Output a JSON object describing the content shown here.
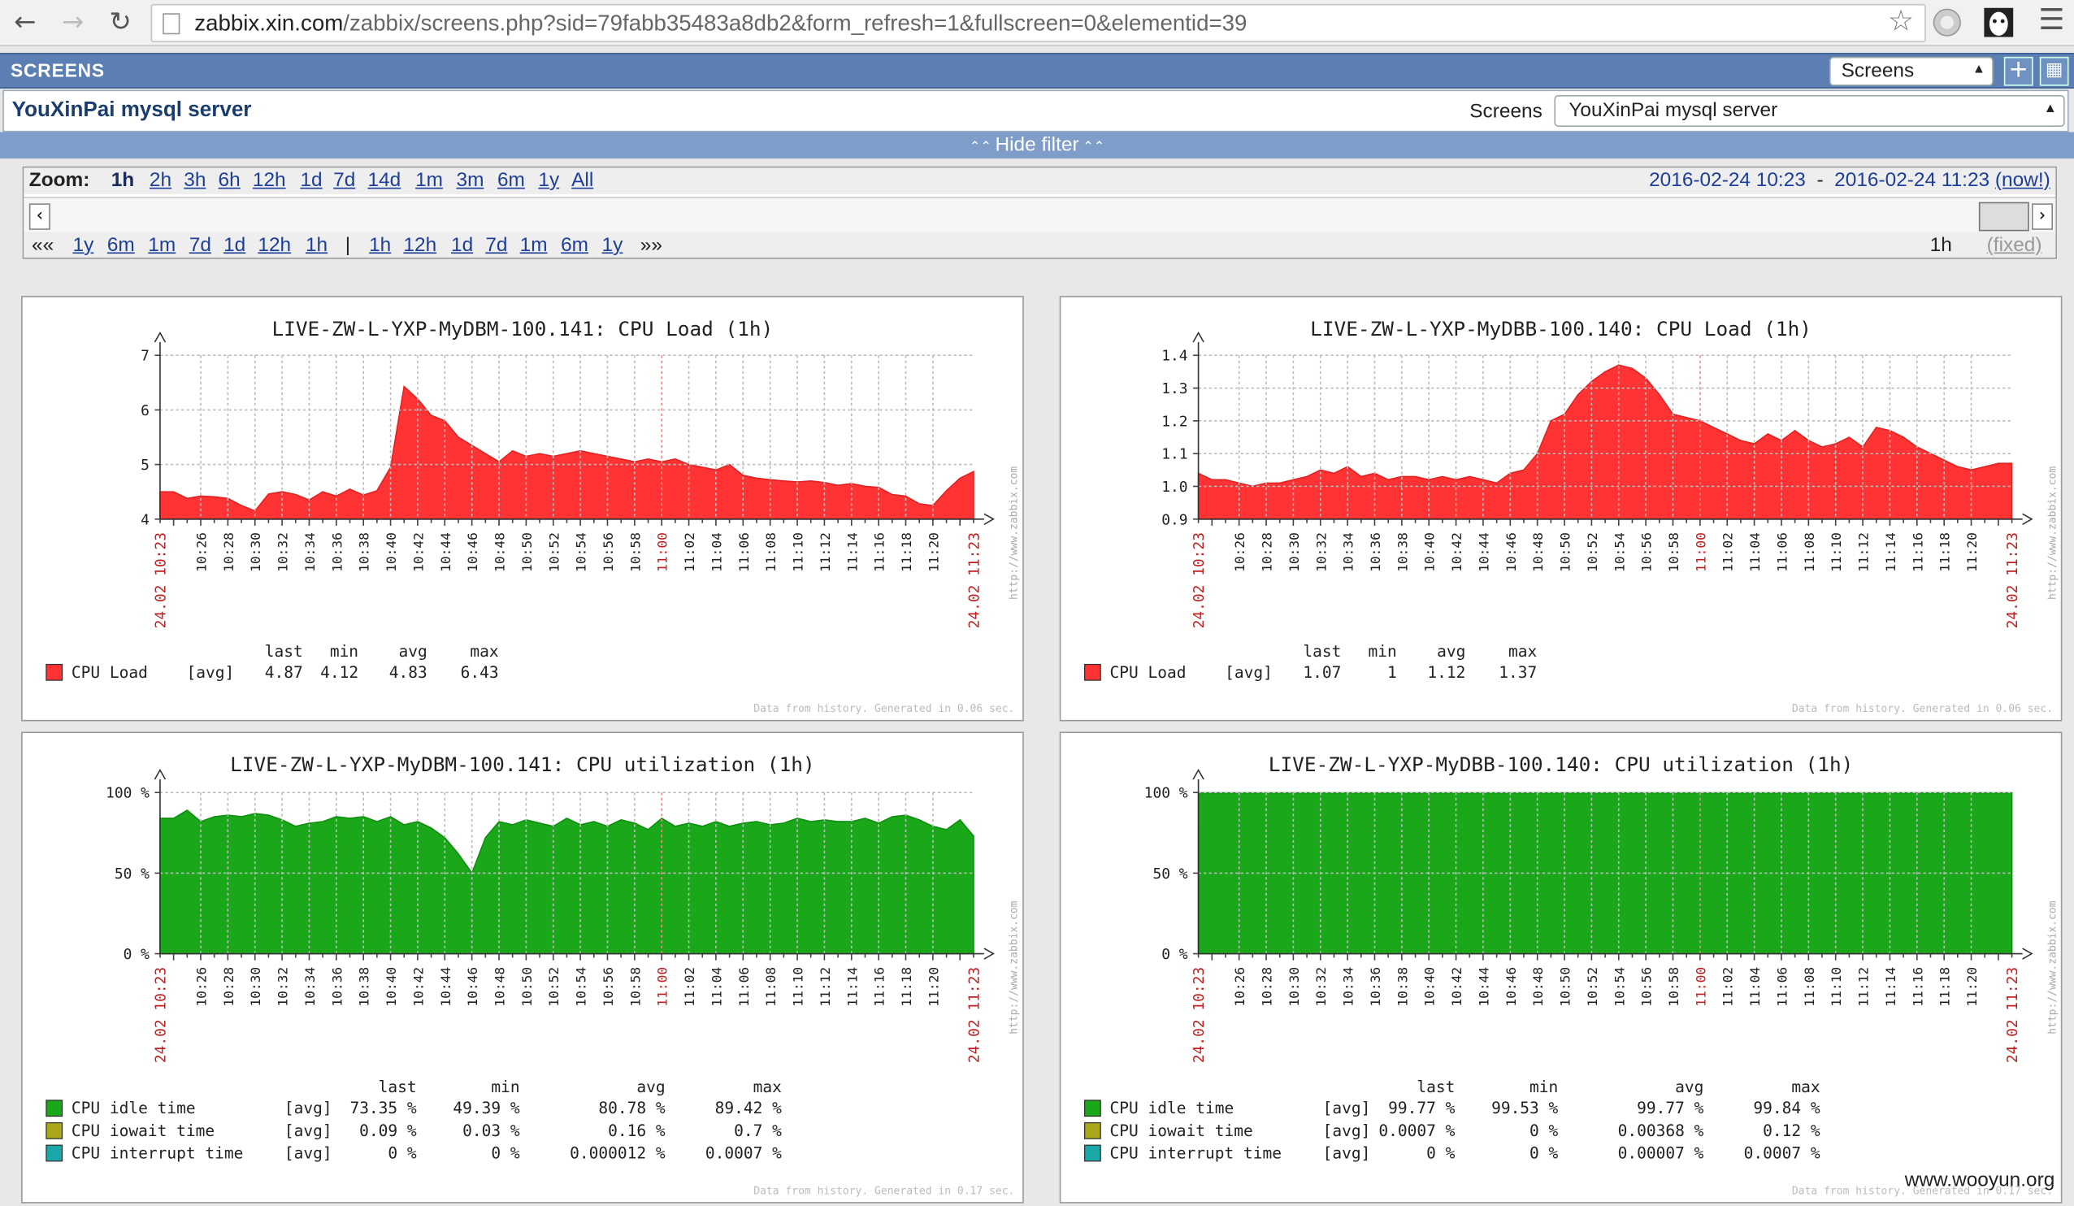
{
  "browser": {
    "url_host": "zabbix.xin.com",
    "url_path": "/zabbix/screens.php?sid=79fabb35483a8db2&form_refresh=1&fullscreen=0&elementid=39"
  },
  "header": {
    "title": "SCREENS",
    "screens_select": "Screens"
  },
  "subheader": {
    "title": "YouXinPai mysql server",
    "screens_label": "Screens",
    "screens_value": "YouXinPai mysql server"
  },
  "filter": {
    "hide_label": "Hide filter",
    "zoom_label": "Zoom:",
    "zoom_links": [
      "1h",
      "2h",
      "3h",
      "6h",
      "12h",
      "1d",
      "7d",
      "14d",
      "1m",
      "3m",
      "6m",
      "1y",
      "All"
    ],
    "range_from": "2016-02-24 10:23",
    "range_sep": "-",
    "range_to": "2016-02-24 11:23",
    "now_label": "(now!)",
    "back_arrows": "««",
    "back_links": [
      "1y",
      "6m",
      "1m",
      "7d",
      "1d",
      "12h",
      "1h"
    ],
    "separator": "|",
    "fwd_links": [
      "1h",
      "12h",
      "1d",
      "7d",
      "1m",
      "6m",
      "1y"
    ],
    "fwd_arrows": "»»",
    "period": "1h",
    "fixed_label": "(fixed)"
  },
  "axis_common": {
    "x_ticks": [
      "10:26",
      "10:28",
      "10:30",
      "10:32",
      "10:34",
      "10:36",
      "10:38",
      "10:40",
      "10:42",
      "10:44",
      "10:46",
      "10:48",
      "10:50",
      "10:52",
      "10:54",
      "10:56",
      "10:58",
      "11:00",
      "11:02",
      "11:04",
      "11:06",
      "11:08",
      "11:10",
      "11:12",
      "11:14",
      "11:16",
      "11:18",
      "11:20"
    ],
    "x_start": "24.02 10:23",
    "x_end": "24.02 11:23",
    "side_text": "http://www.zabbix.com",
    "col_headers": [
      "last",
      "min",
      "avg",
      "max"
    ]
  },
  "graphs": [
    {
      "title": "LIVE-ZW-L-YXP-MyDBM-100.141: CPU Load (1h)",
      "footer": "Data from history. Generated in 0.06 sec.",
      "legend": [
        {
          "name": "CPU Load",
          "fn": "[avg]",
          "last": "4.87",
          "min": "4.12",
          "avg": "4.83",
          "max": "6.43",
          "color": "#ff3333"
        }
      ],
      "chart_data": {
        "type": "area",
        "ylim": [
          4,
          7
        ],
        "y_ticks": [
          "4",
          "5",
          "6",
          "7"
        ],
        "series": [
          {
            "name": "CPU Load",
            "values": [
              4.5,
              4.5,
              4.38,
              4.42,
              4.41,
              4.38,
              4.25,
              4.15,
              4.46,
              4.5,
              4.45,
              4.35,
              4.5,
              4.42,
              4.55,
              4.44,
              4.52,
              4.95,
              6.43,
              6.2,
              5.9,
              5.8,
              5.5,
              5.35,
              5.2,
              5.05,
              5.25,
              5.15,
              5.2,
              5.15,
              5.2,
              5.25,
              5.2,
              5.15,
              5.1,
              5.05,
              5.1,
              5.05,
              5.1,
              5.0,
              4.95,
              4.9,
              5.0,
              4.8,
              4.75,
              4.72,
              4.7,
              4.68,
              4.7,
              4.67,
              4.62,
              4.65,
              4.6,
              4.58,
              4.45,
              4.42,
              4.28,
              4.25,
              4.52,
              4.75,
              4.87
            ]
          }
        ]
      }
    },
    {
      "title": "LIVE-ZW-L-YXP-MyDBB-100.140: CPU Load (1h)",
      "footer": "Data from history. Generated in 0.06 sec.",
      "legend": [
        {
          "name": "CPU Load",
          "fn": "[avg]",
          "last": "1.07",
          "min": "1",
          "avg": "1.12",
          "max": "1.37",
          "color": "#ff3333"
        }
      ],
      "chart_data": {
        "type": "area",
        "ylim": [
          0.9,
          1.4
        ],
        "y_ticks": [
          "0.9",
          "1.0",
          "1.1",
          "1.2",
          "1.3",
          "1.4"
        ],
        "series": [
          {
            "name": "CPU Load",
            "values": [
              1.04,
              1.02,
              1.02,
              1.01,
              1.0,
              1.01,
              1.01,
              1.02,
              1.03,
              1.05,
              1.04,
              1.06,
              1.03,
              1.04,
              1.02,
              1.03,
              1.03,
              1.02,
              1.03,
              1.02,
              1.03,
              1.02,
              1.01,
              1.04,
              1.05,
              1.1,
              1.2,
              1.22,
              1.28,
              1.32,
              1.35,
              1.37,
              1.36,
              1.33,
              1.28,
              1.22,
              1.21,
              1.2,
              1.18,
              1.16,
              1.14,
              1.13,
              1.16,
              1.14,
              1.17,
              1.14,
              1.12,
              1.13,
              1.15,
              1.12,
              1.18,
              1.17,
              1.15,
              1.12,
              1.1,
              1.08,
              1.06,
              1.05,
              1.06,
              1.07,
              1.07
            ]
          }
        ]
      }
    },
    {
      "title": "LIVE-ZW-L-YXP-MyDBM-100.141: CPU utilization (1h)",
      "footer": "Data from history. Generated in 0.17 sec.",
      "legend": [
        {
          "name": "CPU idle time",
          "fn": "[avg]",
          "last": "73.35 %",
          "min": "49.39 %",
          "avg": "80.78 %",
          "max": "89.42 %",
          "color": "#1aa81a"
        },
        {
          "name": "CPU iowait time",
          "fn": "[avg]",
          "last": "0.09 %",
          "min": "0.03 %",
          "avg": "0.16 %",
          "max": "0.7 %",
          "color": "#a8a81a"
        },
        {
          "name": "CPU interrupt time",
          "fn": "[avg]",
          "last": "0 %",
          "min": "0 %",
          "avg": "0.000012 %",
          "max": "0.0007 %",
          "color": "#1aa8a8"
        }
      ],
      "chart_data": {
        "type": "area",
        "ylim": [
          0,
          100
        ],
        "y_ticks": [
          "0 %",
          "50 %",
          "100 %"
        ],
        "series": [
          {
            "name": "CPU idle time",
            "values": [
              84,
              84,
              89,
              82,
              85,
              86,
              85,
              87,
              86,
              83,
              79,
              81,
              82,
              85,
              84,
              85,
              82,
              85,
              80,
              82,
              78,
              72,
              62,
              50,
              72,
              82,
              80,
              83,
              81,
              79,
              84,
              80,
              82,
              79,
              83,
              81,
              77,
              84,
              79,
              81,
              79,
              82,
              79,
              81,
              82,
              80,
              81,
              84,
              82,
              83,
              82,
              82,
              84,
              81,
              85,
              86,
              83,
              79,
              77,
              83,
              73
            ]
          }
        ]
      }
    },
    {
      "title": "LIVE-ZW-L-YXP-MyDBB-100.140: CPU utilization (1h)",
      "footer": "Data from history. Generated in 0.17 sec.",
      "legend": [
        {
          "name": "CPU idle time",
          "fn": "[avg]",
          "last": "99.77 %",
          "min": "99.53 %",
          "avg": "99.77 %",
          "max": "99.84 %",
          "color": "#1aa81a"
        },
        {
          "name": "CPU iowait time",
          "fn": "[avg]",
          "last": "0.0007 %",
          "min": "0 %",
          "avg": "0.00368 %",
          "max": "0.12 %",
          "color": "#a8a81a"
        },
        {
          "name": "CPU interrupt time",
          "fn": "[avg]",
          "last": "0 %",
          "min": "0 %",
          "avg": "0.00007 %",
          "max": "0.0007 %",
          "color": "#1aa8a8"
        }
      ],
      "chart_data": {
        "type": "area",
        "ylim": [
          0,
          100
        ],
        "y_ticks": [
          "0 %",
          "50 %",
          "100 %"
        ],
        "series": [
          {
            "name": "CPU idle time",
            "values": [
              99.8,
              99.8,
              99.8,
              99.8,
              99.8,
              99.8,
              99.8,
              99.8,
              99.8,
              99.8,
              99.8,
              99.8,
              99.8,
              99.8,
              99.8,
              99.8,
              99.8,
              99.8,
              99.8,
              99.8,
              99.8,
              99.8,
              99.8,
              99.8,
              99.8,
              99.8,
              99.8,
              99.8,
              99.8,
              99.8,
              99.8,
              99.8,
              99.8,
              99.8,
              99.8,
              99.8,
              99.8,
              99.8,
              99.8,
              99.8,
              99.8,
              99.8,
              99.8,
              99.8,
              99.8,
              99.8,
              99.8,
              99.8,
              99.8,
              99.8,
              99.8,
              99.8,
              99.8,
              99.8,
              99.8,
              99.8,
              99.8,
              99.8,
              99.8,
              99.8,
              99.8
            ]
          }
        ]
      }
    }
  ],
  "watermark": "www.wooyun.org"
}
